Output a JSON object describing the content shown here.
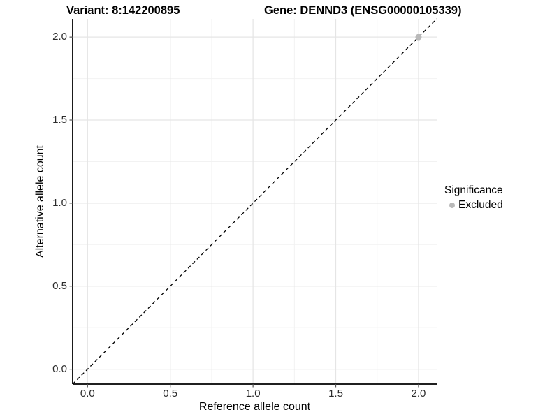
{
  "chart_data": {
    "type": "scatter",
    "title_left": "Variant: 8:142200895",
    "title_right": "Gene: DENND3 (ENSG00000105339)",
    "xlabel": "Reference allele count",
    "ylabel": "Alternative allele count",
    "xlim": [
      -0.09,
      2.11
    ],
    "ylim": [
      -0.09,
      2.11
    ],
    "x_ticks": [
      0.0,
      0.5,
      1.0,
      1.5,
      2.0
    ],
    "y_ticks": [
      0.0,
      0.5,
      1.0,
      1.5,
      2.0
    ],
    "x_tick_labels": [
      "0.0",
      "0.5",
      "1.0",
      "1.5",
      "2.0"
    ],
    "y_tick_labels": [
      "0.0",
      "0.5",
      "1.0",
      "1.5",
      "2.0"
    ],
    "x_minor_ticks": [
      0.25,
      0.75,
      1.25,
      1.75
    ],
    "y_minor_ticks": [
      0.25,
      0.75,
      1.25,
      1.75
    ],
    "grid": true,
    "identity_line": {
      "style": "dashed",
      "from": [
        -0.09,
        -0.09
      ],
      "to": [
        2.11,
        2.11
      ],
      "color": "#000000"
    },
    "series": [
      {
        "name": "Excluded",
        "points": [
          [
            2.0,
            2.0
          ]
        ],
        "color": "#b9b9b9",
        "radius": 4.5
      }
    ],
    "legend": {
      "title": "Significance",
      "position": "right",
      "items": [
        {
          "label": "Excluded",
          "color": "#b9b9b9"
        }
      ]
    },
    "colors": {
      "background": "#ffffff",
      "grid_major": "#e5e5e5",
      "grid_minor": "#f2f2f2",
      "axis_line": "#000000",
      "tick_mark": "#555555",
      "tick_text": "#2b2b2b",
      "title_text": "#000000"
    }
  }
}
